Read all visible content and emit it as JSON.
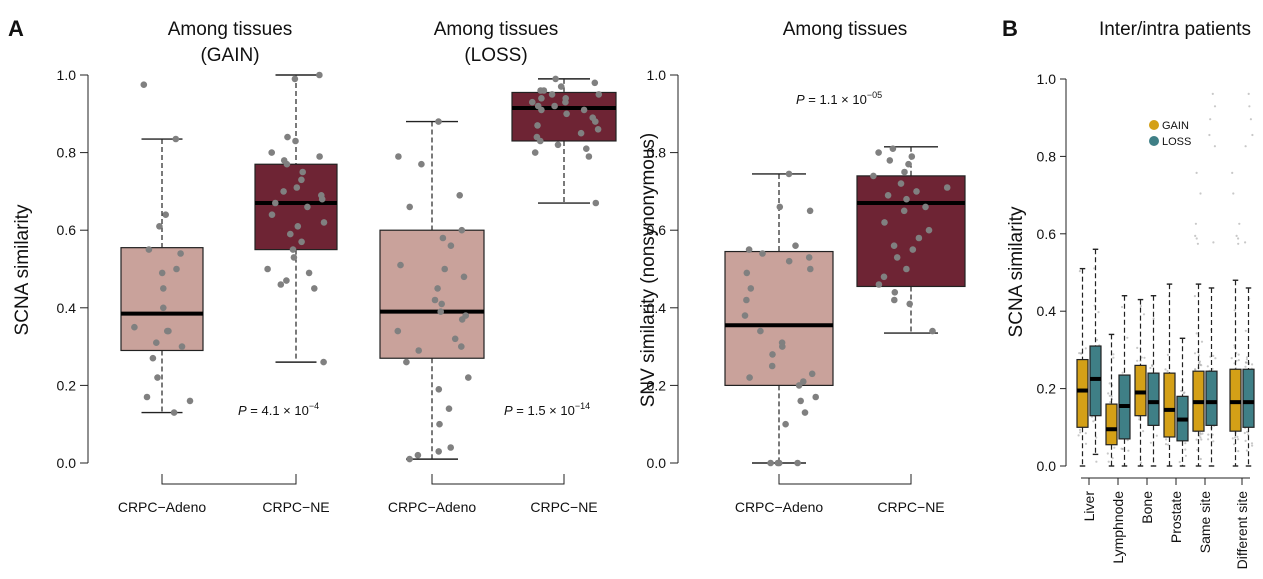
{
  "figure": {
    "panel_a_letter": "A",
    "panel_b_letter": "B"
  },
  "colors": {
    "adeno": "#c9a29b",
    "ne": "#6e2434",
    "gain": "#d4a017",
    "loss": "#3f7f86",
    "points": "#808080"
  },
  "chart_data": [
    {
      "type": "box",
      "title_lines": [
        "Among tissues",
        "(GAIN)"
      ],
      "ylabel": "SCNA similarity",
      "ylim": [
        0,
        1
      ],
      "yticks": [
        "0.0",
        "0.2",
        "0.4",
        "0.6",
        "0.8",
        "1.0"
      ],
      "categories": [
        "CRPC−Adeno",
        "CRPC−NE"
      ],
      "p_value": {
        "prefix": "P",
        "text": " = 4.1 × 10",
        "exp": "−4"
      },
      "boxes": [
        {
          "q1": 0.29,
          "median": 0.385,
          "q3": 0.555,
          "whisker_low": 0.13,
          "whisker_high": 0.835,
          "points": [
            0.975,
            0.835,
            0.64,
            0.61,
            0.55,
            0.54,
            0.5,
            0.49,
            0.45,
            0.4,
            0.35,
            0.34,
            0.34,
            0.31,
            0.3,
            0.27,
            0.22,
            0.17,
            0.16,
            0.13
          ]
        },
        {
          "q1": 0.55,
          "median": 0.67,
          "q3": 0.77,
          "whisker_low": 0.26,
          "whisker_high": 1.0,
          "points": [
            1.0,
            0.99,
            0.84,
            0.83,
            0.8,
            0.79,
            0.78,
            0.77,
            0.75,
            0.73,
            0.71,
            0.7,
            0.69,
            0.68,
            0.67,
            0.66,
            0.64,
            0.62,
            0.61,
            0.59,
            0.57,
            0.55,
            0.53,
            0.5,
            0.49,
            0.47,
            0.46,
            0.45,
            0.26
          ]
        }
      ]
    },
    {
      "type": "box",
      "title_lines": [
        "Among tissues",
        "(LOSS)"
      ],
      "ylabel": "",
      "ylim": [
        0,
        1
      ],
      "yticks": [],
      "categories": [
        "CRPC−Adeno",
        "CRPC−NE"
      ],
      "p_value": {
        "prefix": "P",
        "text": " = 1.5 × 10",
        "exp": "−14"
      },
      "boxes": [
        {
          "q1": 0.27,
          "median": 0.39,
          "q3": 0.6,
          "whisker_low": 0.01,
          "whisker_high": 0.88,
          "points": [
            0.88,
            0.79,
            0.77,
            0.69,
            0.66,
            0.6,
            0.58,
            0.56,
            0.51,
            0.5,
            0.48,
            0.45,
            0.42,
            0.41,
            0.39,
            0.38,
            0.37,
            0.34,
            0.32,
            0.3,
            0.29,
            0.26,
            0.22,
            0.19,
            0.14,
            0.1,
            0.04,
            0.03,
            0.02,
            0.01
          ]
        },
        {
          "q1": 0.83,
          "median": 0.915,
          "q3": 0.955,
          "whisker_low": 0.67,
          "whisker_high": 0.99,
          "points": [
            0.99,
            0.98,
            0.97,
            0.96,
            0.96,
            0.95,
            0.95,
            0.94,
            0.94,
            0.93,
            0.93,
            0.92,
            0.92,
            0.91,
            0.91,
            0.9,
            0.89,
            0.88,
            0.87,
            0.86,
            0.85,
            0.84,
            0.83,
            0.82,
            0.81,
            0.8,
            0.79,
            0.67
          ]
        }
      ]
    },
    {
      "type": "box",
      "title_lines": [
        "Among tissues"
      ],
      "ylabel": "SNV similarity (nonsynonymous)",
      "ylim": [
        0,
        1
      ],
      "yticks": [
        "0.0",
        "0.2",
        "0.4",
        "0.6",
        "0.8",
        "1.0"
      ],
      "categories": [
        "CRPC−Adeno",
        "CRPC−NE"
      ],
      "p_value": {
        "prefix": "P",
        "text": " = 1.1 × 10",
        "exp": "−05"
      },
      "boxes": [
        {
          "q1": 0.2,
          "median": 0.355,
          "q3": 0.545,
          "whisker_low": 0.0,
          "whisker_high": 0.745,
          "points": [
            0.745,
            0.66,
            0.65,
            0.56,
            0.55,
            0.54,
            0.53,
            0.52,
            0.5,
            0.49,
            0.45,
            0.42,
            0.38,
            0.34,
            0.31,
            0.3,
            0.28,
            0.25,
            0.23,
            0.22,
            0.21,
            0.2,
            0.17,
            0.16,
            0.13,
            0.1,
            0.0,
            0.0,
            0.0,
            0.0
          ]
        },
        {
          "q1": 0.455,
          "median": 0.67,
          "q3": 0.74,
          "whisker_low": 0.335,
          "whisker_high": 0.815,
          "points": [
            0.81,
            0.8,
            0.79,
            0.78,
            0.77,
            0.75,
            0.74,
            0.72,
            0.71,
            0.7,
            0.69,
            0.68,
            0.66,
            0.65,
            0.62,
            0.6,
            0.58,
            0.56,
            0.55,
            0.53,
            0.5,
            0.48,
            0.46,
            0.44,
            0.42,
            0.41,
            0.34
          ]
        }
      ]
    },
    {
      "type": "box",
      "title_lines": [
        "Inter/intra patients"
      ],
      "ylabel": "SCNA similarity",
      "ylim": [
        0,
        1
      ],
      "yticks": [
        "0.0",
        "0.2",
        "0.4",
        "0.6",
        "0.8",
        "1.0"
      ],
      "categories": [
        "Liver",
        "Lymphnode",
        "Bone",
        "Prostate",
        "Same site",
        "Different site"
      ],
      "legend": {
        "position": "top-right",
        "entries": [
          "GAIN",
          "LOSS"
        ]
      },
      "series": [
        {
          "name": "GAIN",
          "boxes": [
            {
              "q1": 0.1,
              "median": 0.195,
              "q3": 0.275,
              "whisker_low": 0.0,
              "whisker_high": 0.51
            },
            {
              "q1": 0.055,
              "median": 0.095,
              "q3": 0.16,
              "whisker_low": 0.0,
              "whisker_high": 0.34
            },
            {
              "q1": 0.13,
              "median": 0.19,
              "q3": 0.26,
              "whisker_low": 0.0,
              "whisker_high": 0.43
            },
            {
              "q1": 0.075,
              "median": 0.145,
              "q3": 0.24,
              "whisker_low": 0.0,
              "whisker_high": 0.47
            },
            {
              "q1": 0.09,
              "median": 0.165,
              "q3": 0.245,
              "whisker_low": 0.0,
              "whisker_high": 0.47
            },
            {
              "q1": 0.09,
              "median": 0.165,
              "q3": 0.25,
              "whisker_low": 0.0,
              "whisker_high": 0.48
            }
          ]
        },
        {
          "name": "LOSS",
          "boxes": [
            {
              "q1": 0.13,
              "median": 0.225,
              "q3": 0.31,
              "whisker_low": 0.03,
              "whisker_high": 0.56
            },
            {
              "q1": 0.07,
              "median": 0.155,
              "q3": 0.235,
              "whisker_low": 0.0,
              "whisker_high": 0.44
            },
            {
              "q1": 0.105,
              "median": 0.165,
              "q3": 0.24,
              "whisker_low": 0.0,
              "whisker_high": 0.44
            },
            {
              "q1": 0.065,
              "median": 0.12,
              "q3": 0.18,
              "whisker_low": 0.0,
              "whisker_high": 0.33
            },
            {
              "q1": 0.105,
              "median": 0.165,
              "q3": 0.245,
              "whisker_low": 0.0,
              "whisker_high": 0.46
            },
            {
              "q1": 0.1,
              "median": 0.165,
              "q3": 0.25,
              "whisker_low": 0.0,
              "whisker_high": 0.46
            }
          ]
        }
      ]
    }
  ]
}
